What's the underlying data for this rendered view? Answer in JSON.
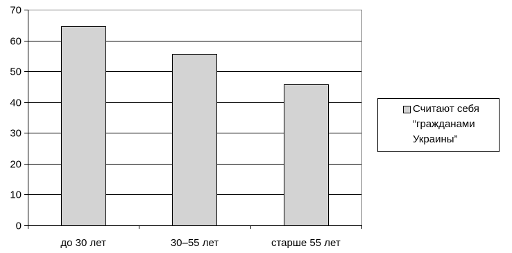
{
  "chart_data": {
    "type": "bar",
    "categories": [
      "до 30 лет",
      "30–55 лет",
      "старше 55 лет"
    ],
    "series": [
      {
        "name": "Считают себя “гражданами Украины”",
        "values": [
          64.7,
          55.6,
          45.8
        ]
      }
    ],
    "ylim": [
      0,
      70
    ],
    "yticks": [
      0,
      10,
      20,
      30,
      40,
      50,
      60,
      70
    ],
    "grid": true,
    "legend_position": "right",
    "bar_color": "#d3d3d3"
  }
}
